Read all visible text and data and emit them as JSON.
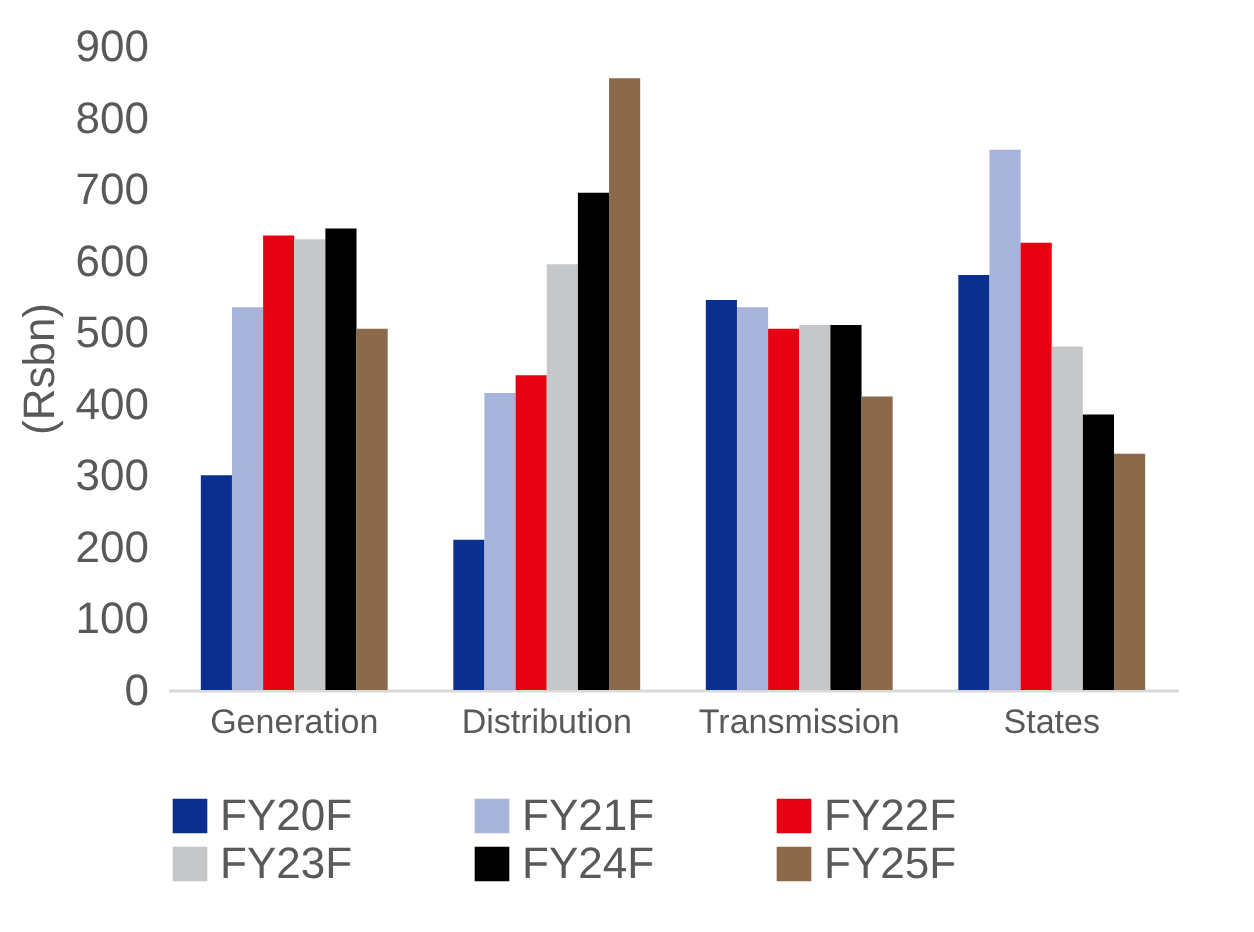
{
  "chart_data": {
    "type": "bar",
    "ylabel": "(Rsbn)",
    "categories": [
      "Generation",
      "Distribution",
      "Transmission",
      "States"
    ],
    "series": [
      {
        "name": "FY20F",
        "color": "#0a2f8f",
        "values": [
          300,
          210,
          545,
          580
        ]
      },
      {
        "name": "FY21F",
        "color": "#a7b3da",
        "values": [
          535,
          415,
          535,
          755
        ]
      },
      {
        "name": "FY22F",
        "color": "#e60012",
        "values": [
          635,
          440,
          505,
          625
        ]
      },
      {
        "name": "FY23F",
        "color": "#c6c7c9",
        "values": [
          630,
          595,
          510,
          480
        ]
      },
      {
        "name": "FY24F",
        "color": "#000000",
        "values": [
          645,
          695,
          510,
          385
        ]
      },
      {
        "name": "FY25F",
        "color": "#8a6a4a",
        "values": [
          505,
          855,
          410,
          330
        ]
      }
    ],
    "ylim": [
      0,
      900
    ],
    "yticks": [
      0,
      100,
      200,
      300,
      400,
      500,
      600,
      700,
      800,
      900
    ],
    "grid": false,
    "legend": "bottom"
  }
}
